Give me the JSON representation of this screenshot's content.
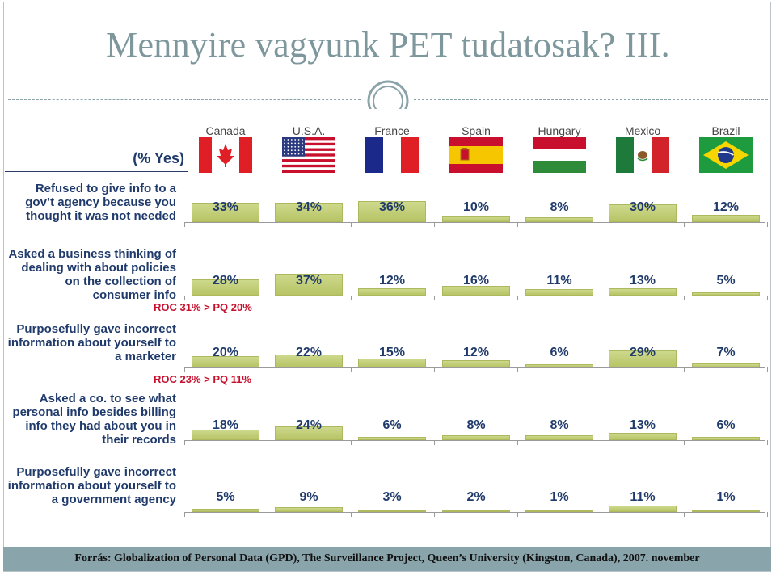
{
  "title": "Mennyire vagyunk PET tudatosak? III.",
  "footer": "Forrás:  Globalization of Personal Data (GPD), The Surveillance Project, Queen’s University (Kingston, Canada), 2007. november",
  "chart_data": {
    "type": "bar",
    "unit_label": "(% Yes)",
    "categories": [
      "Canada",
      "U.S.A.",
      "France",
      "Spain",
      "Hungary",
      "Mexico",
      "Brazil"
    ],
    "series": [
      {
        "name": "Refused to give info to a gov’t agency because you thought it was not needed",
        "values": [
          33,
          34,
          36,
          10,
          8,
          30,
          12
        ]
      },
      {
        "name": "Asked a business thinking of dealing with about policies on the collection of consumer info",
        "values": [
          28,
          37,
          12,
          16,
          11,
          13,
          5
        ]
      },
      {
        "name": "Purposefully gave incorrect information about yourself to a marketer",
        "values": [
          20,
          22,
          15,
          12,
          6,
          29,
          7
        ]
      },
      {
        "name": "Asked a co. to see what personal info besides billing info they had about you in their records",
        "values": [
          18,
          24,
          6,
          8,
          8,
          13,
          6
        ]
      },
      {
        "name": "Purposefully gave incorrect information about yourself to a government agency",
        "values": [
          5,
          9,
          3,
          2,
          1,
          11,
          1
        ]
      }
    ],
    "annotations": [
      "ROC 31% > PQ 20%",
      "ROC 23% > PQ 11%"
    ],
    "value_suffix": "%"
  },
  "flags": {
    "Canada": "canada-flag-icon",
    "U.S.A.": "usa-flag-icon",
    "France": "france-flag-icon",
    "Spain": "spain-flag-icon",
    "Hungary": "hungary-flag-icon",
    "Mexico": "mexico-flag-icon",
    "Brazil": "brazil-flag-icon"
  },
  "colors": {
    "bar": "#c3cf76",
    "label": "#1f3a6b",
    "annotation": "#c8102e",
    "title": "#7d979d",
    "footer_band": "#8aa4ab"
  }
}
